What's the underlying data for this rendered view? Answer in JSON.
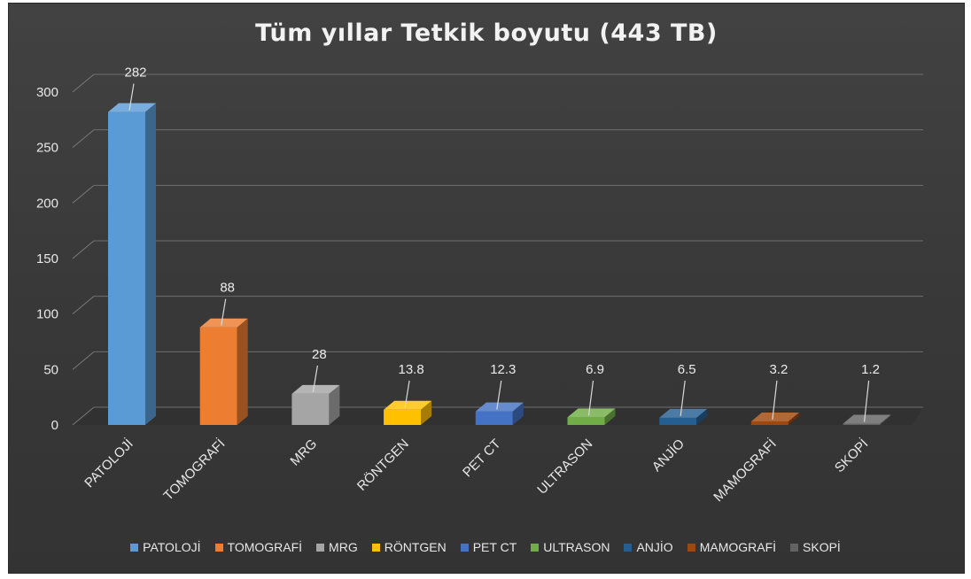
{
  "chart_data": {
    "type": "bar",
    "title": "Tüm yıllar Tetkik boyutu (443 TB)",
    "categories": [
      "PATOLOJİ",
      "TOMOGRAFİ",
      "MRG",
      "RÖNTGEN",
      "PET CT",
      "ULTRASON",
      "ANJİO",
      "MAMOGRAFİ",
      "SKOPİ"
    ],
    "values": [
      282,
      88,
      28,
      13.8,
      12.3,
      6.9,
      6.5,
      3.2,
      1.2
    ],
    "value_labels": [
      "282",
      "88",
      "28",
      "13.8",
      "12.3",
      "6.9",
      "6.5",
      "3.2",
      "1.2"
    ],
    "colors": [
      "#5b9bd5",
      "#ed7d31",
      "#a5a5a5",
      "#ffc000",
      "#4472c4",
      "#70ad47",
      "#255e91",
      "#9e480e",
      "#636363"
    ],
    "ylim": [
      0,
      300
    ],
    "yticks": [
      "0",
      "50",
      "100",
      "150",
      "200",
      "250",
      "300"
    ],
    "ytick_values": [
      0,
      50,
      100,
      150,
      200,
      250,
      300
    ],
    "grid": true,
    "legend_position": "bottom",
    "xlabel": "",
    "ylabel": ""
  }
}
